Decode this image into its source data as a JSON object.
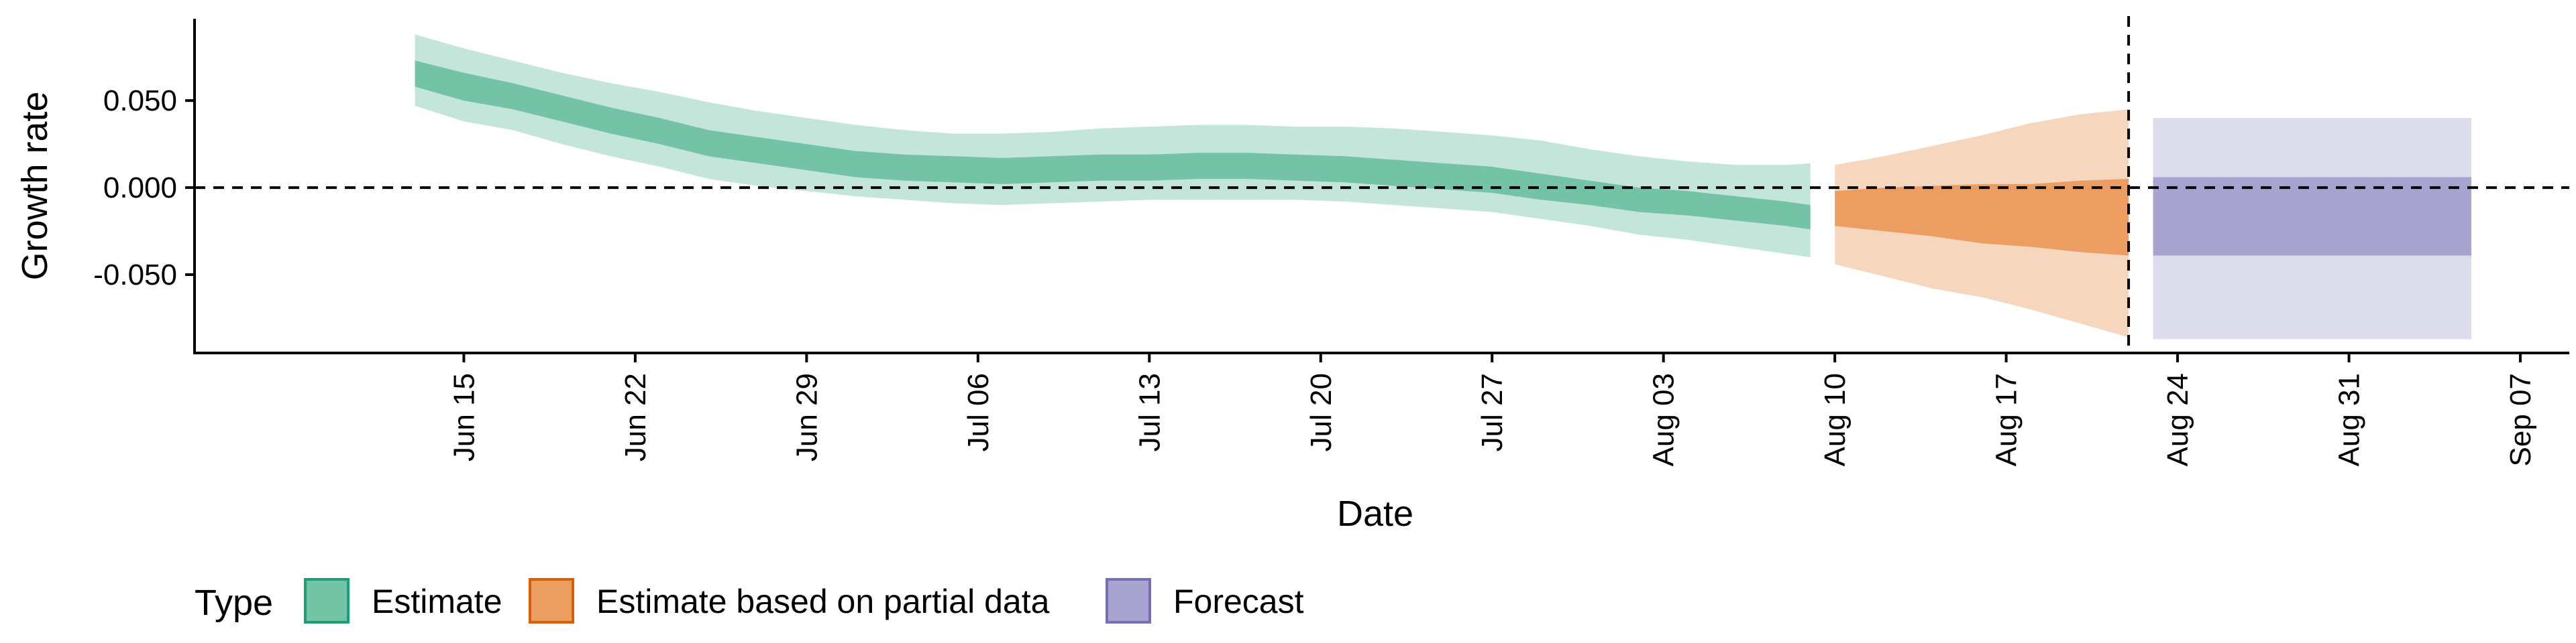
{
  "chart_data": {
    "type": "area",
    "xlabel": "Date",
    "ylabel": "Growth rate",
    "x_range": [
      "2020-06-04",
      "2020-09-09"
    ],
    "ylim": [
      -0.095,
      0.097
    ],
    "grid": false,
    "x_ticks": [
      "Jun 15",
      "Jun 22",
      "Jun 29",
      "Jul 06",
      "Jul 13",
      "Jul 20",
      "Jul 27",
      "Aug 03",
      "Aug 10",
      "Aug 17",
      "Aug 24",
      "Aug 31",
      "Sep 07"
    ],
    "x_tick_dates": [
      "2020-06-15",
      "2020-06-22",
      "2020-06-29",
      "2020-07-06",
      "2020-07-13",
      "2020-07-20",
      "2020-07-27",
      "2020-08-03",
      "2020-08-10",
      "2020-08-17",
      "2020-08-24",
      "2020-08-31",
      "2020-09-07"
    ],
    "y_ticks": [
      0.05,
      0.0,
      -0.05
    ],
    "y_tick_labels": [
      "0.050",
      "0.000",
      "-0.050"
    ],
    "hline_y": 0,
    "vline_x": "2020-08-22",
    "legend": {
      "title": "Type",
      "position": "bottom",
      "entries": [
        {
          "label": "Estimate",
          "fill": "#74c3a7",
          "border": "#1b9e77"
        },
        {
          "label": "Estimate based on partial data",
          "fill": "#eb9d62",
          "border": "#d95f02"
        },
        {
          "label": "Forecast",
          "fill": "#a8a4d2",
          "border": "#7570b3"
        }
      ]
    },
    "series": [
      {
        "name": "Estimate",
        "color_outer": "#c4e6da",
        "color_inner": "#74c3a7",
        "x": [
          "2020-06-13",
          "2020-06-15",
          "2020-06-17",
          "2020-06-19",
          "2020-06-21",
          "2020-06-23",
          "2020-06-25",
          "2020-06-27",
          "2020-06-29",
          "2020-07-01",
          "2020-07-03",
          "2020-07-05",
          "2020-07-07",
          "2020-07-09",
          "2020-07-11",
          "2020-07-13",
          "2020-07-15",
          "2020-07-17",
          "2020-07-19",
          "2020-07-21",
          "2020-07-23",
          "2020-07-25",
          "2020-07-27",
          "2020-07-29",
          "2020-07-31",
          "2020-08-02",
          "2020-08-04",
          "2020-08-06",
          "2020-08-08",
          "2020-08-09"
        ],
        "lower_outer": [
          0.047,
          0.038,
          0.033,
          0.025,
          0.018,
          0.012,
          0.005,
          0.001,
          -0.002,
          -0.005,
          -0.007,
          -0.009,
          -0.01,
          -0.009,
          -0.008,
          -0.007,
          -0.007,
          -0.007,
          -0.007,
          -0.008,
          -0.01,
          -0.012,
          -0.014,
          -0.018,
          -0.022,
          -0.027,
          -0.03,
          -0.034,
          -0.038,
          -0.04
        ],
        "lower_inner": [
          0.058,
          0.05,
          0.045,
          0.038,
          0.031,
          0.025,
          0.018,
          0.014,
          0.01,
          0.006,
          0.004,
          0.003,
          0.002,
          0.003,
          0.004,
          0.004,
          0.005,
          0.005,
          0.004,
          0.003,
          0.001,
          -0.001,
          -0.003,
          -0.007,
          -0.01,
          -0.014,
          -0.016,
          -0.019,
          -0.022,
          -0.024
        ],
        "upper_inner": [
          0.073,
          0.066,
          0.06,
          0.053,
          0.046,
          0.04,
          0.033,
          0.029,
          0.025,
          0.021,
          0.019,
          0.018,
          0.017,
          0.018,
          0.019,
          0.019,
          0.02,
          0.02,
          0.019,
          0.018,
          0.016,
          0.014,
          0.012,
          0.008,
          0.004,
          0.0,
          -0.002,
          -0.005,
          -0.008,
          -0.01
        ],
        "upper_outer": [
          0.088,
          0.08,
          0.073,
          0.066,
          0.06,
          0.055,
          0.049,
          0.044,
          0.04,
          0.036,
          0.033,
          0.031,
          0.031,
          0.032,
          0.034,
          0.035,
          0.036,
          0.036,
          0.035,
          0.035,
          0.034,
          0.032,
          0.03,
          0.027,
          0.022,
          0.018,
          0.015,
          0.013,
          0.013,
          0.014
        ]
      },
      {
        "name": "Estimate based on partial data",
        "color_outer": "#f6d6bd",
        "color_inner": "#eb9d62",
        "x": [
          "2020-08-10",
          "2020-08-12",
          "2020-08-14",
          "2020-08-16",
          "2020-08-18",
          "2020-08-20",
          "2020-08-22"
        ],
        "lower_outer": [
          -0.044,
          -0.051,
          -0.058,
          -0.063,
          -0.07,
          -0.078,
          -0.086
        ],
        "lower_inner": [
          -0.022,
          -0.025,
          -0.028,
          -0.032,
          -0.034,
          -0.037,
          -0.039
        ],
        "upper_inner": [
          -0.002,
          0.0,
          0.001,
          0.002,
          0.002,
          0.004,
          0.005
        ],
        "upper_outer": [
          0.013,
          0.018,
          0.024,
          0.03,
          0.037,
          0.042,
          0.045
        ]
      },
      {
        "name": "Forecast",
        "color_outer": "#dddcec",
        "color_inner": "#a8a4d2",
        "x": [
          "2020-08-23",
          "2020-09-05"
        ],
        "lower_outer": [
          -0.087,
          -0.087
        ],
        "lower_inner": [
          -0.039,
          -0.039
        ],
        "upper_inner": [
          0.006,
          0.006
        ],
        "upper_outer": [
          0.04,
          0.04
        ]
      }
    ]
  }
}
